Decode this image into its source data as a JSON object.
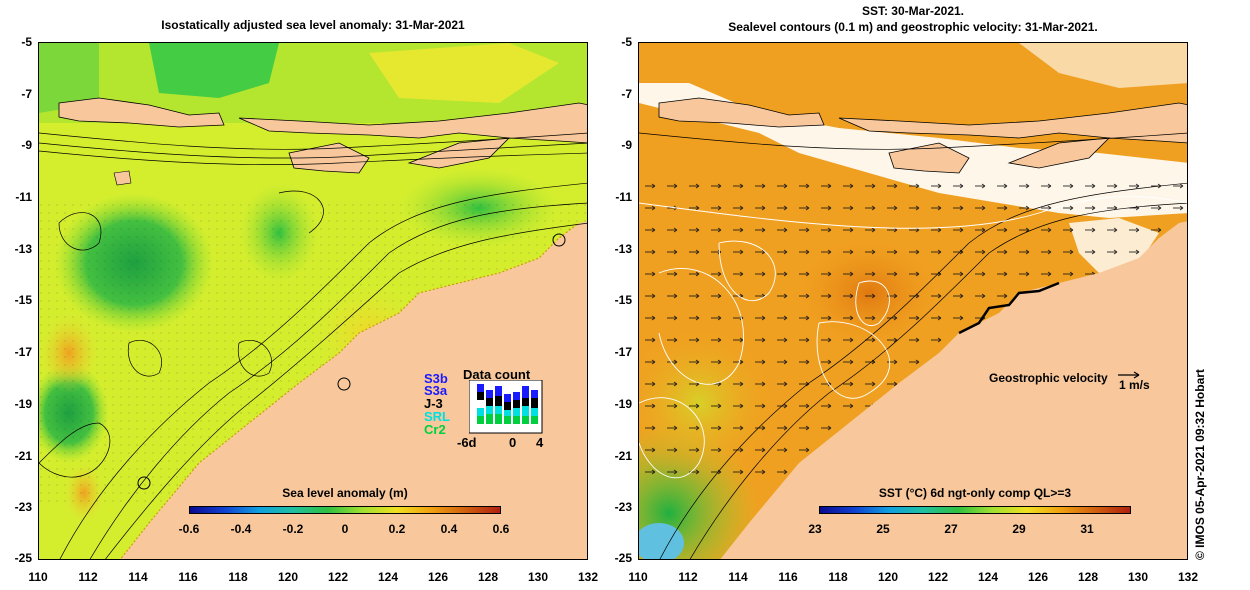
{
  "left_panel": {
    "title": "Isostatically adjusted sea level anomaly: 31-Mar-2021",
    "y_ticks": [
      "-5",
      "-7",
      "-9",
      "-11",
      "-13",
      "-15",
      "-17",
      "-19",
      "-21",
      "-23",
      "-25"
    ],
    "x_ticks": [
      "110",
      "112",
      "114",
      "116",
      "118",
      "120",
      "122",
      "124",
      "126",
      "128",
      "130",
      "132"
    ],
    "colorbar": {
      "title": "Sea level anomaly (m)",
      "ticks": [
        "-0.6",
        "-0.4",
        "-0.2",
        "0",
        "0.2",
        "0.4",
        "0.6"
      ]
    },
    "data_count": {
      "title": "Data count",
      "labels": [
        "S3b",
        "S3a",
        "J-3",
        "SRL",
        "Cr2"
      ],
      "label_colors": [
        "#1a1aff",
        "#1a1aff",
        "#000000",
        "#00e0e0",
        "#00d040"
      ],
      "axis": [
        "-6d",
        "0",
        "4"
      ]
    }
  },
  "right_panel": {
    "title_line1": "SST: 30-Mar-2021.",
    "title_line2": "Sealevel contours (0.1 m) and geostrophic velocity: 31-Mar-2021.",
    "y_ticks": [
      "-5",
      "-7",
      "-9",
      "-11",
      "-13",
      "-15",
      "-17",
      "-19",
      "-21",
      "-23",
      "-25"
    ],
    "x_ticks": [
      "110",
      "112",
      "114",
      "116",
      "118",
      "120",
      "122",
      "124",
      "126",
      "128",
      "130",
      "132"
    ],
    "velocity_label": "Geostrophic velocity",
    "velocity_scale": "1 m/s",
    "colorbar": {
      "title": "SST (°C) 6d ngt-only comp QL>=3",
      "ticks": [
        "23",
        "25",
        "27",
        "29",
        "31"
      ]
    }
  },
  "credit": "© IMOS 05-Apr-2021 09:32 Hobart",
  "colors": {
    "land": "#f8c89c",
    "sla_ocean": "#d4ee2e",
    "sst_ocean": "#f0a020",
    "cloud": "#ffffff"
  }
}
